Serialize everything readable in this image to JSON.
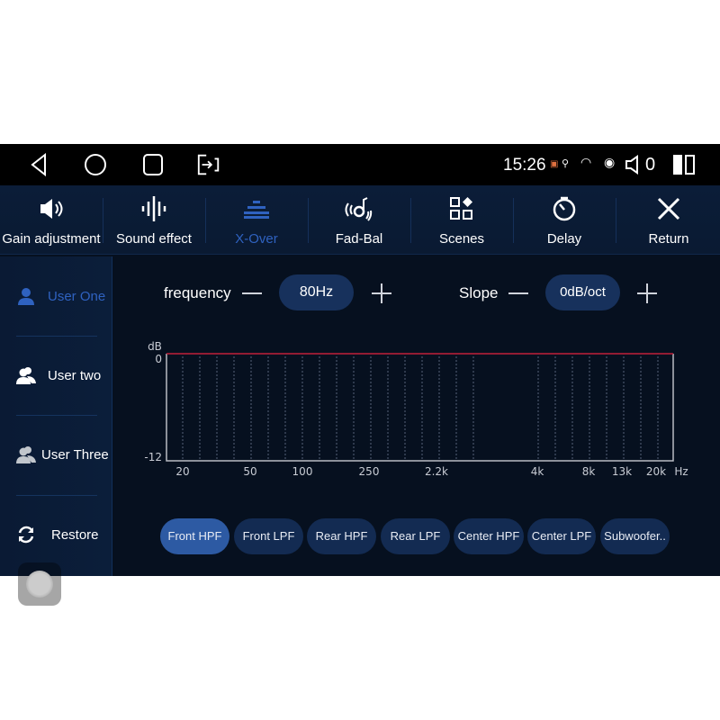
{
  "status_bar": {
    "time": "15:26",
    "volume": "0",
    "icons": [
      "back-icon",
      "home-icon",
      "recents-icon",
      "screen-mirror-icon",
      "cast-icon",
      "location-icon",
      "wifi-icon",
      "hotspot-icon",
      "speaker-icon",
      "split-screen-icon"
    ]
  },
  "toolbar": {
    "items": [
      {
        "label": "Gain adjustment",
        "icon": "speaker-icon"
      },
      {
        "label": "Sound effect",
        "icon": "waveform-icon"
      },
      {
        "label": "X-Over",
        "icon": "equalizer-icon",
        "active": true
      },
      {
        "label": "Fad-Bal",
        "icon": "fader-balance-icon"
      },
      {
        "label": "Scenes",
        "icon": "scenes-grid-icon"
      },
      {
        "label": "Delay",
        "icon": "timer-icon"
      },
      {
        "label": "Return",
        "icon": "close-icon"
      }
    ]
  },
  "sidebar": {
    "items": [
      {
        "label": "User One",
        "icon": "user-icon",
        "active": true
      },
      {
        "label": "User two",
        "icon": "users-icon"
      },
      {
        "label": "User Three",
        "icon": "users-icon"
      },
      {
        "label": "Restore",
        "icon": "refresh-icon"
      }
    ]
  },
  "controls": {
    "frequency_label": "frequency",
    "frequency_value": "80Hz",
    "slope_label": "Slope",
    "slope_value": "0dB/oct"
  },
  "filter_tabs": [
    {
      "label": "Front HPF",
      "active": true
    },
    {
      "label": "Front LPF"
    },
    {
      "label": "Rear HPF"
    },
    {
      "label": "Rear LPF"
    },
    {
      "label": "Center HPF"
    },
    {
      "label": "Center LPF"
    },
    {
      "label": "Subwoofer.."
    }
  ],
  "colors": {
    "accent": "#2f62c0",
    "curve": "#c0203a",
    "background": "#06101f"
  },
  "chart_data": {
    "type": "line",
    "ylabel": "dB",
    "xlabel": "Hz",
    "yticks": [
      "0",
      "-12"
    ],
    "ylim": [
      -12,
      0
    ],
    "xticks": [
      "20",
      "50",
      "100",
      "250",
      "2.2k",
      "4k",
      "8k",
      "13k",
      "20k"
    ],
    "grid": true,
    "series": [
      {
        "x": [
          "20",
          "20k"
        ],
        "y": [
          0,
          0
        ]
      }
    ]
  }
}
